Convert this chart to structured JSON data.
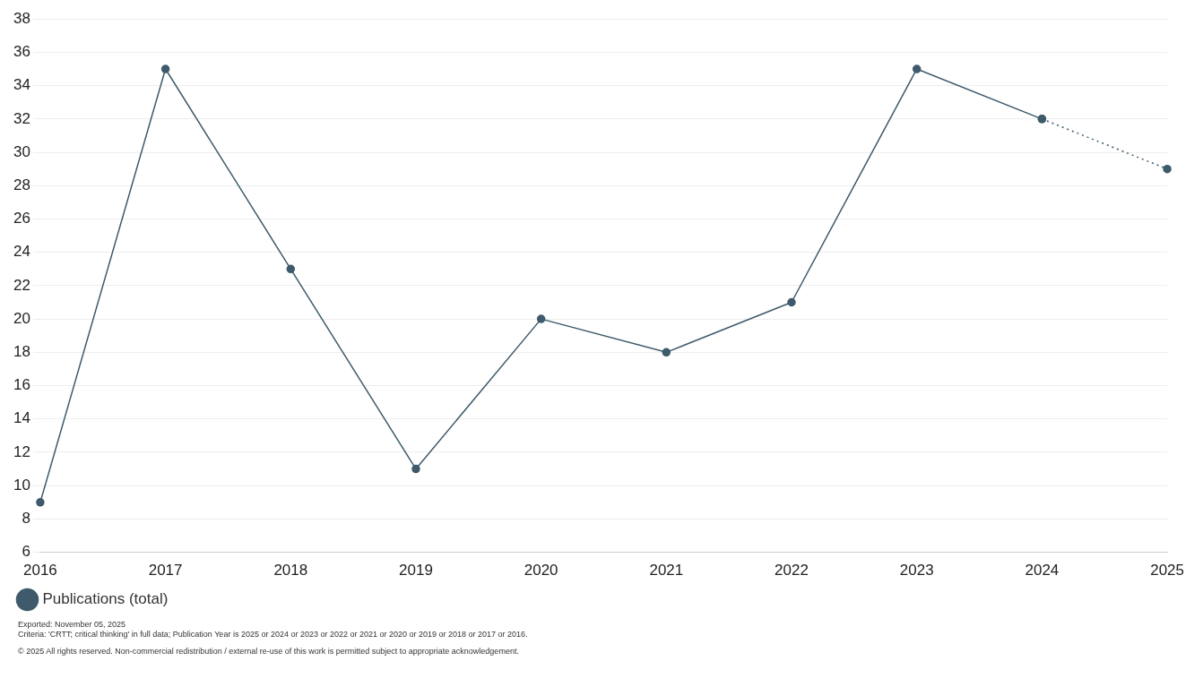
{
  "chart_data": {
    "type": "line",
    "categories": [
      "2016",
      "2017",
      "2018",
      "2019",
      "2020",
      "2021",
      "2022",
      "2023",
      "2024",
      "2025"
    ],
    "series": [
      {
        "name": "Publications (total)",
        "color": "#3e5a6b",
        "values": [
          9,
          35,
          23,
          11,
          20,
          18,
          21,
          35,
          32,
          null
        ],
        "line_style": "solid"
      },
      {
        "color": "#3e5a6b",
        "values": [
          null,
          null,
          null,
          null,
          null,
          null,
          null,
          null,
          32,
          29
        ],
        "line_style": "dotted"
      }
    ],
    "ylim": [
      6,
      38
    ],
    "yticks": [
      6,
      8,
      10,
      12,
      14,
      16,
      18,
      20,
      22,
      24,
      26,
      28,
      30,
      32,
      34,
      36,
      38
    ],
    "grid": "y",
    "legend": "bottom left",
    "marker": "circle",
    "annotations": [
      "Exported: November 05, 2025",
      "Criteria: 'CRTT; critical thinking' in full data; Publication Year is 2025 or 2024 or 2023 or 2022 or 2021 or 2020 or 2019 or 2018 or 2017 or 2016.",
      "© 2025 All rights reserved. Non-commercial redistribution / external re-use of this work is permitted subject to appropriate acknowledgement."
    ]
  }
}
